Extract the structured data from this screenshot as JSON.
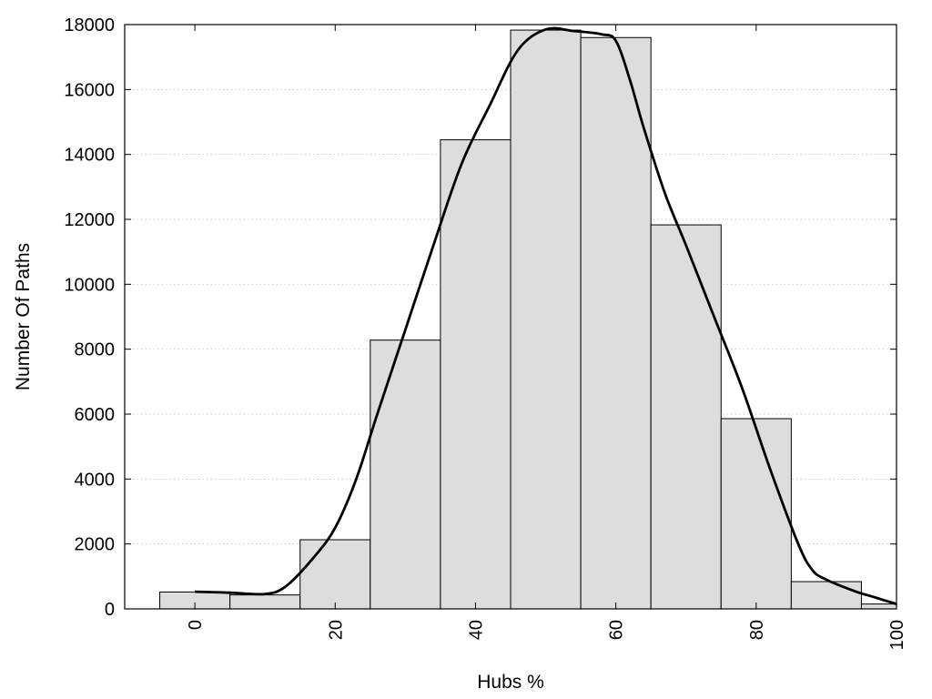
{
  "chart_data": {
    "type": "bar",
    "title": "",
    "xlabel": "Hubs %",
    "ylabel": "Number Of Paths",
    "xlim": [
      -10,
      100
    ],
    "ylim": [
      0,
      18000
    ],
    "x_ticks": [
      "0",
      "20",
      "40",
      "60",
      "80",
      "100"
    ],
    "x_tick_values": [
      0,
      20,
      40,
      60,
      80,
      100
    ],
    "y_ticks": [
      "0",
      "2000",
      "4000",
      "6000",
      "8000",
      "10000",
      "12000",
      "14000",
      "16000",
      "18000"
    ],
    "y_tick_values": [
      0,
      2000,
      4000,
      6000,
      8000,
      10000,
      12000,
      14000,
      16000,
      18000
    ],
    "grid": "horizontal dotted",
    "legend": "none",
    "bin_width": 10,
    "bars": [
      {
        "x": 0,
        "value": 520
      },
      {
        "x": 10,
        "value": 430
      },
      {
        "x": 20,
        "value": 2130
      },
      {
        "x": 30,
        "value": 8280
      },
      {
        "x": 40,
        "value": 14450
      },
      {
        "x": 50,
        "value": 17830
      },
      {
        "x": 60,
        "value": 17600
      },
      {
        "x": 70,
        "value": 11830
      },
      {
        "x": 80,
        "value": 5860
      },
      {
        "x": 90,
        "value": 840
      },
      {
        "x": 100,
        "value": 150
      }
    ],
    "smooth_curve": {
      "x": [
        0,
        5,
        10,
        13,
        17,
        20,
        23,
        26,
        30,
        34,
        38,
        42,
        46,
        50,
        54,
        58,
        60,
        62,
        64,
        67,
        70,
        74,
        78,
        82,
        86,
        88,
        90,
        94,
        97,
        100
      ],
      "y": [
        530,
        500,
        460,
        700,
        1600,
        2500,
        4000,
        6000,
        8600,
        11200,
        13700,
        15500,
        17200,
        17850,
        17800,
        17700,
        17500,
        16300,
        14800,
        12800,
        11200,
        9000,
        6800,
        4300,
        2000,
        1200,
        900,
        550,
        350,
        150
      ]
    },
    "colors": {
      "bar_fill": "#dddddd",
      "bar_stroke": "#000000",
      "curve": "#000000",
      "grid": "#c8c8c8"
    }
  }
}
